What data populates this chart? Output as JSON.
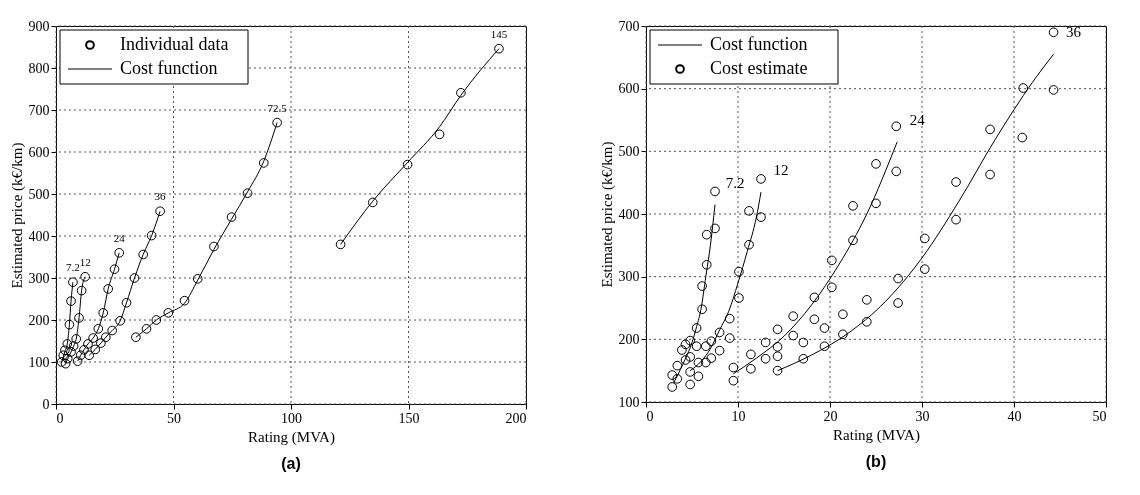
{
  "chart_data": [
    {
      "type": "scatter",
      "title": "(a)",
      "xlabel": "Rating (MVA)",
      "ylabel": "Estimated price (k€/km)",
      "xlim": [
        0,
        200
      ],
      "xticks": [
        0,
        50,
        100,
        150,
        200
      ],
      "ylim": [
        0,
        900
      ],
      "yticks": [
        0,
        100,
        200,
        300,
        400,
        500,
        600,
        700,
        800,
        900
      ],
      "grid": true,
      "legend": "top left",
      "line_style": "solid",
      "series": [
        {
          "name": "Individual data",
          "marker": "circle",
          "color": "#000000",
          "x": [
            2.4,
            3.1,
            3.8,
            4.8,
            5.7,
            6.4,
            7.2,
            4.1,
            5.0,
            6.4,
            7.5,
            8.6,
            9.8,
            10.9,
            12.4,
            9.2,
            10.5,
            11.9,
            13.6,
            15.8,
            18.0,
            20.1,
            22.2,
            24.9,
            26.9,
            14.1,
            16.7,
            19.1,
            21.2,
            23.9,
            27.3,
            30.0,
            33.4,
            37.1,
            40.7,
            44.3,
            34.0,
            38.5,
            42.7,
            47.8,
            54.7,
            60.3,
            67.2,
            74.7,
            81.5,
            88.4,
            94.1,
            121.1,
            134.8,
            149.6,
            163.2,
            172.3,
            188.5
          ],
          "values": [
            100,
            116,
            128,
            143,
            189,
            245,
            290,
            96,
            108,
            124,
            138,
            155,
            205,
            270,
            303,
            102,
            116,
            129,
            143,
            157,
            179,
            217,
            274,
            321,
            360,
            116,
            130,
            145,
            159,
            175,
            198,
            241,
            300,
            356,
            401,
            459,
            159,
            179,
            200,
            217,
            246,
            298,
            375,
            445,
            502,
            574,
            670,
            380,
            480,
            570,
            642,
            741,
            846
          ]
        },
        {
          "name": "Cost function",
          "type": "line",
          "color": "#000000",
          "x": [
            2.4,
            3.8,
            4.8,
            5.7,
            6.4,
            7.2
          ],
          "values": [
            100,
            125,
            143,
            189,
            245,
            290
          ]
        },
        {
          "type": "line",
          "color": "#000000",
          "x": [
            4.1,
            5.0,
            6.4,
            7.5,
            8.6,
            9.8,
            10.9,
            12.4
          ],
          "values": [
            96,
            108,
            124,
            138,
            155,
            205,
            270,
            303
          ]
        },
        {
          "type": "line",
          "color": "#000000",
          "x": [
            9.2,
            10.5,
            11.9,
            13.6,
            15.8,
            18.0,
            20.1,
            22.2,
            24.9,
            26.9
          ],
          "values": [
            102,
            116,
            129,
            143,
            157,
            179,
            217,
            274,
            321,
            360
          ]
        },
        {
          "type": "line",
          "color": "#000000",
          "x": [
            14.1,
            16.7,
            19.1,
            21.2,
            23.9,
            27.3,
            30.0,
            33.4,
            37.1,
            40.7,
            44.3
          ],
          "values": [
            116,
            130,
            145,
            159,
            175,
            198,
            241,
            300,
            356,
            401,
            459
          ]
        },
        {
          "type": "line",
          "color": "#000000",
          "x": [
            34.0,
            38.5,
            42.7,
            47.8,
            54.7,
            60.3,
            67.2,
            74.7,
            81.5,
            88.4,
            94.1
          ],
          "values": [
            159,
            179,
            200,
            217,
            240,
            295,
            368,
            440,
            505,
            578,
            670
          ]
        },
        {
          "type": "line",
          "color": "#000000",
          "x": [
            121.1,
            134.8,
            149.6,
            163.2,
            172.3,
            188.5
          ],
          "values": [
            380,
            483,
            575,
            660,
            735,
            846
          ]
        }
      ],
      "annotations": [
        "7.2",
        "12",
        "24",
        "36",
        "72.5",
        "145"
      ]
    },
    {
      "type": "scatter",
      "title": "(b)",
      "xlabel": "Rating (MVA)",
      "ylabel": "Estimated price (k€/km)",
      "xlim": [
        0,
        50
      ],
      "xticks": [
        0,
        10,
        20,
        30,
        40,
        50
      ],
      "ylim": [
        100,
        700
      ],
      "yticks": [
        100,
        200,
        300,
        400,
        500,
        600,
        700
      ],
      "grid": true,
      "legend": "top left",
      "line_style": "solid",
      "series": [
        {
          "name": "Cost function",
          "type": "line",
          "color": "#000000",
          "x": [
            3.0,
            4.0,
            5.0,
            5.5,
            6.0,
            6.5,
            7.0,
            7.5
          ],
          "values": [
            130,
            160,
            195,
            220,
            250,
            300,
            350,
            415
          ]
        },
        {
          "name": "Cost estimate",
          "marker": "circle",
          "color": "#000000",
          "x": [
            2.85,
            2.85,
            3.4,
            3.4,
            3.9,
            4.3,
            4.3,
            4.8,
            4.8,
            4.8,
            4.8,
            5.5,
            5.5,
            5.7,
            5.7,
            6.1,
            6.1,
            6.5,
            6.5,
            6.6,
            6.6,
            7.1,
            7.1,
            7.5,
            7.5,
            8.0,
            8.0,
            9.1,
            9.1,
            9.5,
            9.5,
            10.1,
            10.1,
            11.2,
            11.2,
            11.4,
            11.4,
            12.5,
            12.5,
            13.0,
            13.0,
            14.3,
            14.3,
            14.3,
            14.3,
            16.0,
            16.0,
            17.1,
            17.1,
            18.3,
            18.3,
            19.4,
            19.4,
            20.2,
            20.2,
            21.4,
            21.4,
            22.5,
            22.5,
            24.0,
            24.0,
            25.0,
            25.0,
            27.2,
            27.2,
            27.4,
            27.4,
            30.3,
            30.3,
            33.7,
            33.7,
            37.4,
            37.4,
            40.9,
            41.0,
            44.3,
            44.3
          ],
          "values": [
            124,
            143,
            137,
            158,
            183,
            167,
            192,
            198,
            172,
            148,
            128,
            218,
            189,
            163,
            141,
            248,
            285,
            189,
            163,
            319,
            367,
            197,
            170,
            377,
            436,
            211,
            182,
            233,
            202,
            155,
            134,
            308,
            266,
            351,
            405,
            176,
            153,
            395,
            456,
            195,
            169,
            216,
            188,
            173,
            150,
            237,
            206,
            195,
            169,
            267,
            232,
            218,
            189,
            326,
            283,
            240,
            208,
            413,
            358,
            263,
            228,
            480,
            417,
            540,
            468,
            297,
            258,
            361,
            312,
            451,
            391,
            535,
            463,
            522,
            601,
            690,
            598
          ]
        },
        {
          "type": "line",
          "color": "#000000",
          "x": [
            4.8,
            6.0,
            7.0,
            8.0,
            9.0,
            10.0,
            11.0,
            12.0,
            12.5
          ],
          "values": [
            150,
            165,
            185,
            215,
            245,
            290,
            340,
            395,
            435
          ]
        },
        {
          "type": "line",
          "color": "#000000",
          "x": [
            9.5,
            12,
            15,
            18,
            21,
            24,
            27.3
          ],
          "values": [
            145,
            170,
            205,
            255,
            320,
            400,
            515
          ]
        },
        {
          "type": "line",
          "color": "#000000",
          "x": [
            14.3,
            18,
            22,
            26,
            30,
            34,
            38,
            42,
            44.3
          ],
          "values": [
            150,
            175,
            210,
            260,
            330,
            420,
            520,
            610,
            655
          ]
        }
      ],
      "annotations": [
        "7.2",
        "12",
        "24",
        "36"
      ]
    }
  ]
}
